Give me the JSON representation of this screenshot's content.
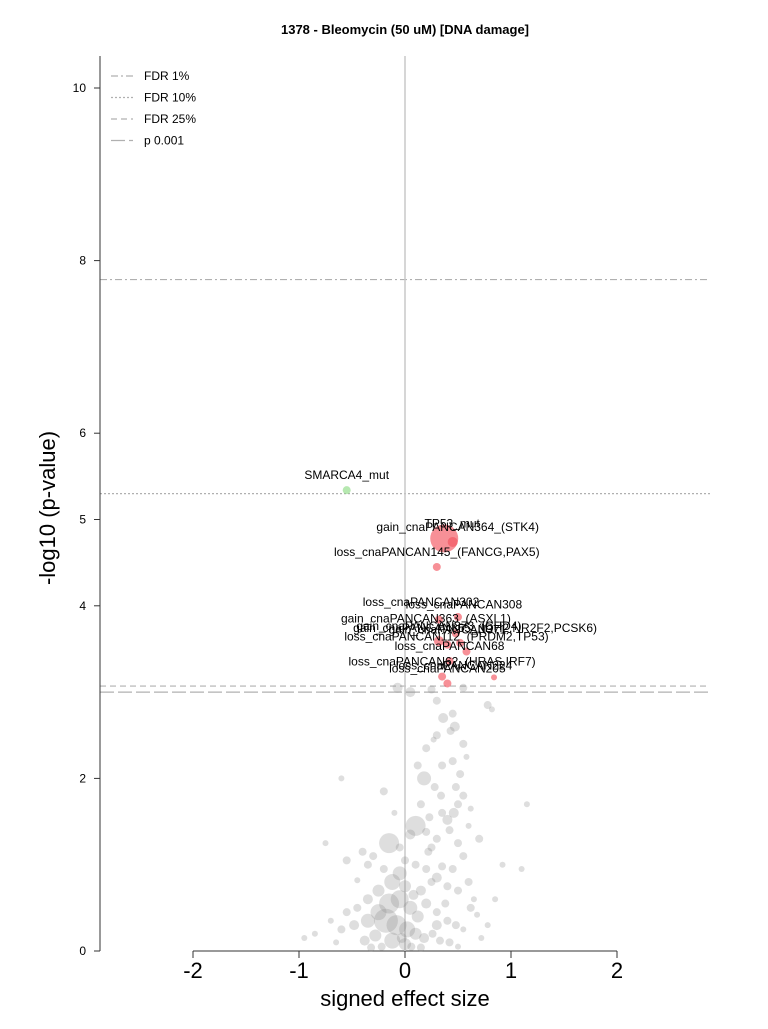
{
  "chart_data": {
    "type": "scatter",
    "title": "1378 - Bleomycin (50 uM) [DNA damage]",
    "xlabel": "signed effect size",
    "ylabel": "-log10 (p-value)",
    "xlim": [
      -2,
      2
    ],
    "ylim": [
      0,
      10
    ],
    "x_ticks": [
      "-2",
      "-1",
      "0",
      "1",
      "2"
    ],
    "y_ticks": [
      "0",
      "2",
      "4",
      "5",
      "6",
      "8",
      "10"
    ],
    "grid": false,
    "zero_line_x": 0,
    "legend_position": "top-left",
    "colors": {
      "significant_positive": "#f2555f",
      "significant_negative": "#8fdc86",
      "background": "#8a8a8a",
      "threshold": "#b0b0b0"
    },
    "thresholds": [
      {
        "name": "FDR 1%",
        "y": 7.78,
        "style": "dashdot"
      },
      {
        "name": "FDR 10%",
        "y": 5.3,
        "style": "dotted"
      },
      {
        "name": "FDR 25%",
        "y": 3.07,
        "style": "dashed"
      },
      {
        "name": "p 0.001",
        "y": 3.0,
        "style": "longdash"
      }
    ],
    "labeled_points": [
      {
        "label": "SMARCA4_mut",
        "x": -0.55,
        "y": 5.34,
        "size": 4,
        "color": "#8fdc86",
        "label_dx": 0,
        "label_dy": -11
      },
      {
        "label": "TP53_mut",
        "x": 0.37,
        "y": 4.78,
        "size": 14,
        "color": "#f2555f",
        "label_dx": 8,
        "label_dy": -11
      },
      {
        "label": "gain_cnaPANCAN364_(STK4)",
        "x": 0.45,
        "y": 4.74,
        "size": 5,
        "color": "#f2555f",
        "label_dx": 5,
        "label_dy": -11
      },
      {
        "label": "loss_cnaPANCAN145_(FANCG,PAX5)",
        "x": 0.3,
        "y": 4.45,
        "size": 4,
        "color": "#f2555f",
        "label_dx": 0,
        "label_dy": -11
      },
      {
        "label": "loss_cnaPANCAN302",
        "x": 0.5,
        "y": 3.87,
        "size": 4,
        "color": "#f2555f",
        "label_dx": -37,
        "label_dy": -11
      },
      {
        "label": "loss_cnaPANCAN308",
        "x": 0.32,
        "y": 3.84,
        "size": 4,
        "color": "#f2555f",
        "label_dx": 25,
        "label_dy": -11
      },
      {
        "label": "gain_cnaPANCAN363_(ASXL1)",
        "x": 0.48,
        "y": 3.68,
        "size": 4,
        "color": "#f2555f",
        "label_dx": -30,
        "label_dy": -11
      },
      {
        "label": "gain_cnaPANCAN373_(CHD4)",
        "x": 0.32,
        "y": 3.59,
        "size": 5,
        "color": "#f2555f",
        "label_dx": 0,
        "label_dy": -11
      },
      {
        "label": "gain_cnaPANCAN365_(IDH2,NR2F2,PCSK6)",
        "x": 0.52,
        "y": 3.57,
        "size": 4,
        "color": "#f2555f",
        "label_dx": 15,
        "label_dy": -11
      },
      {
        "label": "gain_cnaPANCAN371",
        "x": 0.4,
        "y": 3.55,
        "size": 4,
        "color": "#f2555f",
        "label_dx": 0,
        "label_dy": -11
      },
      {
        "label": "loss_cnaPANCAN112_(PRDM2,TP53)",
        "x": 0.58,
        "y": 3.47,
        "size": 4,
        "color": "#f2555f",
        "label_dx": -20,
        "label_dy": -11
      },
      {
        "label": "loss_cnaPANCAN68",
        "x": 0.42,
        "y": 3.36,
        "size": 4,
        "color": "#f2555f",
        "label_dx": 0,
        "label_dy": -11
      },
      {
        "label": "loss_cnaPANCAN62_(HRAS,IRF7)",
        "x": 0.35,
        "y": 3.18,
        "size": 4,
        "color": "#f2555f",
        "label_dx": 0,
        "label_dy": -11
      },
      {
        "label": "loss_cnaPANCAN205",
        "x": 0.4,
        "y": 3.1,
        "size": 4,
        "color": "#f2555f",
        "label_dx": 0,
        "label_dy": -11
      },
      {
        "label": "loss_cnaPANCAN224",
        "x": 0.84,
        "y": 3.17,
        "size": 3,
        "color": "#f2555f",
        "label_dx": -40,
        "label_dy": -8
      }
    ],
    "background_points_note": "about 1000 grey non-significant points; representative subset below",
    "background_points": [
      [
        -0.07,
        3.05,
        5
      ],
      [
        0.05,
        3.0,
        5
      ],
      [
        0.25,
        3.03,
        4
      ],
      [
        0.55,
        3.05,
        4
      ],
      [
        0.3,
        2.9,
        4
      ],
      [
        0.36,
        2.7,
        5
      ],
      [
        0.45,
        2.75,
        4
      ],
      [
        0.47,
        2.6,
        5
      ],
      [
        0.3,
        2.5,
        4
      ],
      [
        0.2,
        2.35,
        4
      ],
      [
        0.78,
        2.85,
        4
      ],
      [
        0.82,
        2.8,
        3
      ],
      [
        0.55,
        2.4,
        4
      ],
      [
        0.45,
        2.2,
        4
      ],
      [
        0.52,
        2.05,
        4
      ],
      [
        0.18,
        2.0,
        7
      ],
      [
        0.28,
        1.9,
        4
      ],
      [
        0.55,
        1.8,
        4
      ],
      [
        0.5,
        1.7,
        4
      ],
      [
        0.62,
        1.65,
        3
      ],
      [
        -0.6,
        2.0,
        3
      ],
      [
        -0.2,
        1.85,
        4
      ],
      [
        0.15,
        1.7,
        4
      ],
      [
        0.35,
        1.6,
        4
      ],
      [
        0.23,
        1.55,
        4
      ],
      [
        0.4,
        1.52,
        5
      ],
      [
        0.42,
        1.4,
        4
      ],
      [
        0.3,
        1.3,
        4
      ],
      [
        0.25,
        1.2,
        4
      ],
      [
        0.5,
        1.25,
        4
      ],
      [
        0.55,
        1.1,
        4
      ],
      [
        0.7,
        1.3,
        4
      ],
      [
        0.92,
        1.0,
        3
      ],
      [
        1.15,
        1.7,
        3
      ],
      [
        1.1,
        0.95,
        3
      ],
      [
        0.1,
        1.45,
        10
      ],
      [
        0.05,
        1.35,
        5
      ],
      [
        0.2,
        1.38,
        4
      ],
      [
        -0.3,
        1.1,
        4
      ],
      [
        -0.15,
        1.25,
        10
      ],
      [
        -0.75,
        1.25,
        3
      ],
      [
        -0.55,
        1.05,
        4
      ],
      [
        -0.4,
        1.15,
        4
      ],
      [
        -0.35,
        1.0,
        4
      ],
      [
        -0.2,
        0.95,
        4
      ],
      [
        0.0,
        1.05,
        4
      ],
      [
        0.1,
        1.0,
        4
      ],
      [
        0.2,
        0.95,
        4
      ],
      [
        0.35,
        0.98,
        4
      ],
      [
        0.45,
        0.95,
        4
      ],
      [
        0.3,
        0.85,
        5
      ],
      [
        0.25,
        0.8,
        4
      ],
      [
        0.4,
        0.75,
        4
      ],
      [
        0.5,
        0.7,
        4
      ],
      [
        0.6,
        0.8,
        4
      ],
      [
        0.65,
        0.6,
        3
      ],
      [
        -0.05,
        0.9,
        7
      ],
      [
        -0.12,
        0.8,
        8
      ],
      [
        0.0,
        0.75,
        6
      ],
      [
        0.08,
        0.65,
        5
      ],
      [
        -0.25,
        0.7,
        6
      ],
      [
        -0.35,
        0.6,
        5
      ],
      [
        -0.45,
        0.5,
        4
      ],
      [
        -0.55,
        0.45,
        4
      ],
      [
        -0.7,
        0.35,
        3
      ],
      [
        -0.6,
        0.25,
        4
      ],
      [
        -0.48,
        0.3,
        5
      ],
      [
        -0.35,
        0.35,
        7
      ],
      [
        -0.25,
        0.45,
        8
      ],
      [
        -0.15,
        0.55,
        10
      ],
      [
        -0.05,
        0.6,
        9
      ],
      [
        0.05,
        0.5,
        7
      ],
      [
        0.12,
        0.4,
        6
      ],
      [
        0.2,
        0.55,
        5
      ],
      [
        0.3,
        0.45,
        4
      ],
      [
        0.4,
        0.35,
        4
      ],
      [
        0.48,
        0.3,
        4
      ],
      [
        0.55,
        0.25,
        3
      ],
      [
        0.68,
        0.42,
        3
      ],
      [
        0.62,
        0.5,
        4
      ],
      [
        -0.85,
        0.2,
        3
      ],
      [
        -0.95,
        0.15,
        3
      ],
      [
        -0.18,
        0.35,
        12
      ],
      [
        -0.08,
        0.3,
        10
      ],
      [
        0.02,
        0.25,
        8
      ],
      [
        0.1,
        0.2,
        6
      ],
      [
        0.18,
        0.15,
        5
      ],
      [
        0.26,
        0.2,
        4
      ],
      [
        0.33,
        0.12,
        4
      ],
      [
        0.42,
        0.1,
        4
      ],
      [
        -0.28,
        0.18,
        6
      ],
      [
        -0.38,
        0.12,
        5
      ],
      [
        -0.12,
        0.12,
        8
      ],
      [
        0.0,
        0.08,
        6
      ],
      [
        -0.03,
        0.15,
        5
      ],
      [
        0.06,
        0.05,
        4
      ],
      [
        0.15,
        0.04,
        4
      ],
      [
        -0.22,
        0.05,
        4
      ],
      [
        -0.32,
        0.04,
        4
      ],
      [
        0.5,
        0.05,
        3
      ],
      [
        0.72,
        0.15,
        3
      ],
      [
        0.78,
        0.3,
        3
      ],
      [
        -0.65,
        0.1,
        3
      ],
      [
        0.3,
        0.3,
        5
      ],
      [
        0.38,
        0.55,
        4
      ],
      [
        0.15,
        0.7,
        5
      ],
      [
        -0.05,
        1.2,
        4
      ],
      [
        0.48,
        1.9,
        4
      ],
      [
        0.58,
        2.25,
        3
      ],
      [
        0.43,
        2.55,
        4
      ],
      [
        0.12,
        2.15,
        4
      ],
      [
        0.35,
        2.15,
        4
      ],
      [
        0.27,
        2.45,
        3
      ],
      [
        0.22,
        1.15,
        4
      ],
      [
        0.46,
        1.6,
        5
      ],
      [
        0.34,
        1.8,
        4
      ],
      [
        0.6,
        1.45,
        3
      ],
      [
        -0.1,
        1.6,
        3
      ],
      [
        -0.45,
        0.82,
        3
      ],
      [
        0.85,
        0.6,
        3
      ]
    ]
  }
}
